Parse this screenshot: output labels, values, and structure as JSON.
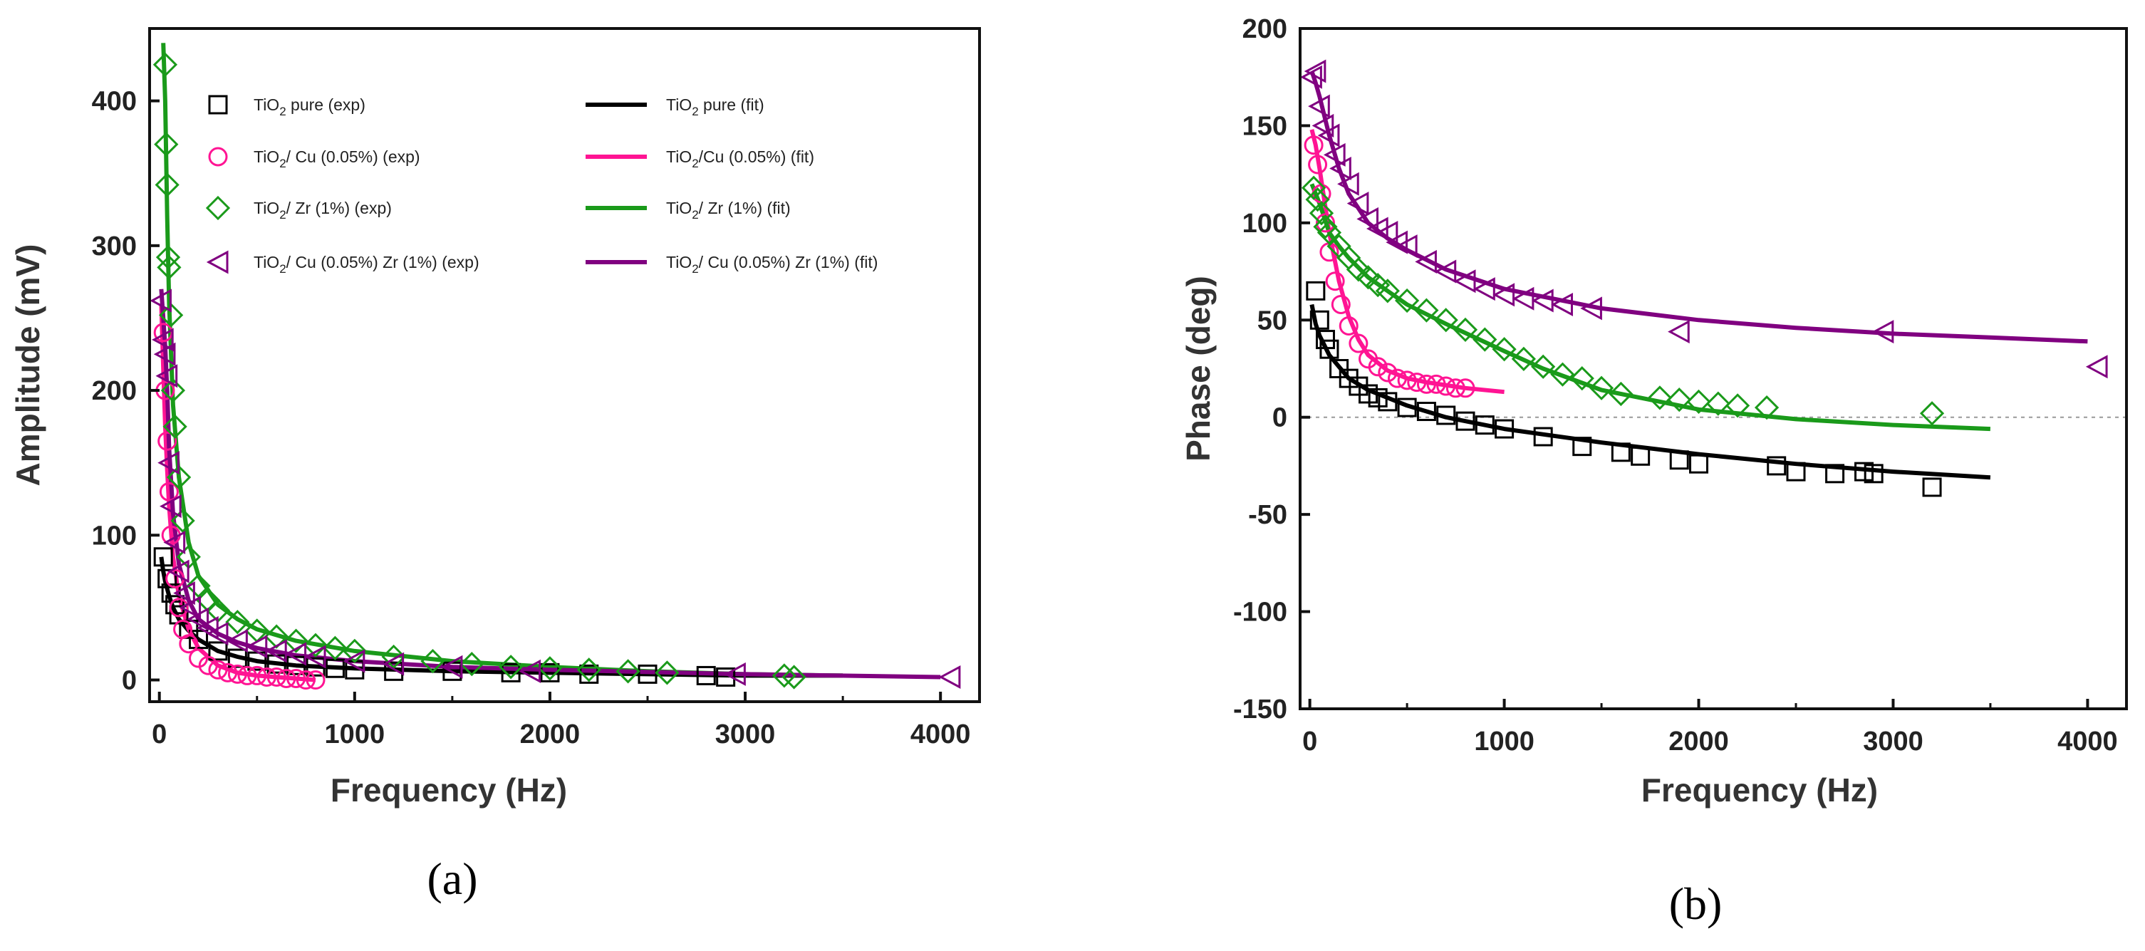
{
  "chart_data": [
    {
      "type": "scatter",
      "panel_label": "(a)",
      "xlabel": "Frequency (Hz)",
      "ylabel": "Amplitude (mV)",
      "xlim": [
        -50,
        4200
      ],
      "ylim": [
        -15,
        450
      ],
      "xticks": [
        "0",
        "1000",
        "2000",
        "3000",
        "4000"
      ],
      "yticks": [
        "0",
        "100",
        "200",
        "300",
        "400"
      ],
      "legend_position": "top-right",
      "series": [
        {
          "name": "pure-exp",
          "prefix": "TiO",
          "sub": "2",
          "suffix": " pure (exp)",
          "kind": "exp",
          "marker": "square",
          "color": "#000000",
          "x": [
            20,
            40,
            60,
            80,
            100,
            150,
            200,
            300,
            400,
            500,
            600,
            700,
            800,
            900,
            1000,
            1200,
            1500,
            1800,
            2000,
            2200,
            2500,
            2800,
            2900
          ],
          "y": [
            85,
            70,
            60,
            52,
            45,
            35,
            28,
            20,
            15,
            13,
            11,
            10,
            9,
            8,
            7,
            6,
            6,
            5,
            5,
            4,
            4,
            3,
            2
          ]
        },
        {
          "name": "cu-exp",
          "prefix": "TiO",
          "sub": "2",
          "suffix": "/ Cu (0.05%) (exp)",
          "kind": "exp",
          "marker": "circle",
          "color": "#ff1493",
          "x": [
            20,
            30,
            40,
            50,
            60,
            80,
            100,
            120,
            150,
            200,
            250,
            300,
            350,
            400,
            450,
            500,
            550,
            600,
            650,
            700,
            750,
            800
          ],
          "y": [
            240,
            200,
            165,
            130,
            100,
            70,
            50,
            35,
            25,
            15,
            10,
            7,
            5,
            4,
            3,
            3,
            2,
            2,
            1,
            1,
            0,
            0
          ]
        },
        {
          "name": "zr-exp",
          "prefix": "TiO",
          "sub": "2",
          "suffix": "/ Zr (1%) (exp)",
          "kind": "exp",
          "marker": "diamond",
          "color": "#1a9a1a",
          "x": [
            30,
            35,
            40,
            45,
            50,
            60,
            70,
            80,
            100,
            120,
            150,
            200,
            250,
            300,
            400,
            500,
            600,
            700,
            800,
            900,
            1000,
            1200,
            1400,
            1600,
            1800,
            2000,
            2200,
            2400,
            2600,
            3200,
            3250
          ],
          "y": [
            425,
            370,
            342,
            292,
            285,
            252,
            200,
            175,
            140,
            110,
            85,
            65,
            55,
            48,
            40,
            34,
            30,
            27,
            24,
            22,
            20,
            16,
            13,
            11,
            9,
            8,
            7,
            6,
            5,
            3,
            2
          ]
        },
        {
          "name": "cuzr-exp",
          "prefix": "TiO",
          "sub": "2",
          "suffix": "/ Cu (0.05%) Zr (1%) (exp)",
          "kind": "exp",
          "marker": "triangle",
          "color": "#800080",
          "x": [
            10,
            20,
            30,
            40,
            50,
            60,
            80,
            100,
            130,
            160,
            200,
            250,
            300,
            400,
            500,
            600,
            700,
            800,
            1000,
            1200,
            1500,
            1900,
            2950,
            4050
          ],
          "y": [
            262,
            235,
            225,
            210,
            150,
            120,
            95,
            75,
            60,
            50,
            42,
            36,
            32,
            27,
            23,
            20,
            18,
            16,
            13,
            11,
            9,
            6,
            4,
            2
          ]
        },
        {
          "name": "pure-fit",
          "prefix": "TiO",
          "sub": "2",
          "suffix": " pure (fit)",
          "kind": "fit",
          "color": "#000000",
          "x": [
            10,
            20,
            30,
            50,
            70,
            100,
            150,
            200,
            300,
            400,
            500,
            700,
            1000,
            1500,
            2000,
            2500,
            3000,
            3500
          ],
          "y": [
            85,
            75,
            68,
            58,
            50,
            42,
            34,
            28,
            20,
            16,
            13,
            10,
            8,
            6,
            5,
            4,
            3,
            3
          ]
        },
        {
          "name": "cu-fit",
          "prefix": "TiO",
          "sub": "2",
          "suffix": "/Cu (0.05%) (fit)",
          "kind": "fit",
          "color": "#ff1493",
          "x": [
            10,
            20,
            30,
            40,
            50,
            70,
            100,
            150,
            200,
            300,
            400,
            500,
            600,
            800
          ],
          "y": [
            260,
            215,
            175,
            145,
            120,
            85,
            58,
            35,
            22,
            10,
            5,
            3,
            2,
            0
          ]
        },
        {
          "name": "zr-fit",
          "prefix": "TiO",
          "sub": "2",
          "suffix": "/ Zr (1%) (fit)",
          "kind": "fit",
          "color": "#1a9a1a",
          "x": [
            20,
            30,
            40,
            50,
            70,
            100,
            150,
            200,
            300,
            400,
            500,
            700,
            1000,
            1500,
            2000,
            2500,
            3000,
            3500
          ],
          "y": [
            440,
            400,
            320,
            260,
            190,
            140,
            95,
            72,
            52,
            42,
            35,
            27,
            20,
            13,
            9,
            6,
            4,
            3
          ]
        },
        {
          "name": "cuzr-fit",
          "prefix": "TiO",
          "sub": "2",
          "suffix": "/ Cu (0.05%) Zr (1%) (fit)",
          "kind": "fit",
          "color": "#800080",
          "x": [
            10,
            20,
            30,
            40,
            50,
            70,
            100,
            150,
            200,
            300,
            400,
            500,
            700,
            1000,
            1500,
            2000,
            3000,
            4000
          ],
          "y": [
            270,
            250,
            230,
            200,
            160,
            115,
            80,
            55,
            42,
            32,
            26,
            22,
            17,
            13,
            9,
            7,
            4,
            2
          ]
        }
      ]
    },
    {
      "type": "scatter",
      "panel_label": "(b)",
      "xlabel": "Frequency (Hz)",
      "ylabel": "Phase (deg)",
      "xlim": [
        -50,
        4200
      ],
      "ylim": [
        -150,
        200
      ],
      "xticks": [
        "0",
        "1000",
        "2000",
        "3000",
        "4000"
      ],
      "yticks": [
        "-150",
        "-100",
        "-50",
        "0",
        "50",
        "100",
        "150",
        "200"
      ],
      "reference_line_y": 0,
      "series": [
        {
          "name": "pure-exp",
          "kind": "exp",
          "marker": "square",
          "color": "#000000",
          "x": [
            30,
            50,
            80,
            100,
            150,
            200,
            250,
            300,
            350,
            400,
            500,
            600,
            700,
            800,
            900,
            1000,
            1200,
            1400,
            1600,
            1700,
            1900,
            2000,
            2400,
            2500,
            2700,
            2850,
            2900,
            3200
          ],
          "y": [
            65,
            50,
            40,
            35,
            25,
            20,
            16,
            12,
            10,
            8,
            5,
            3,
            1,
            -2,
            -4,
            -6,
            -10,
            -15,
            -18,
            -20,
            -22,
            -24,
            -25,
            -28,
            -29,
            -28,
            -29,
            -36
          ]
        },
        {
          "name": "cu-exp",
          "kind": "exp",
          "marker": "circle",
          "color": "#ff1493",
          "x": [
            20,
            40,
            60,
            80,
            100,
            130,
            160,
            200,
            250,
            300,
            350,
            400,
            450,
            500,
            550,
            600,
            650,
            700,
            750,
            800
          ],
          "y": [
            140,
            130,
            115,
            100,
            85,
            70,
            58,
            47,
            38,
            30,
            26,
            23,
            20,
            19,
            18,
            17,
            17,
            16,
            15,
            15
          ]
        },
        {
          "name": "zr-exp",
          "kind": "exp",
          "marker": "diamond",
          "color": "#1a9a1a",
          "x": [
            20,
            40,
            60,
            80,
            100,
            150,
            200,
            250,
            300,
            350,
            400,
            500,
            600,
            700,
            800,
            900,
            1000,
            1100,
            1200,
            1300,
            1400,
            1500,
            1600,
            1800,
            1900,
            2000,
            2100,
            2200,
            2350,
            3200
          ],
          "y": [
            118,
            112,
            105,
            98,
            95,
            88,
            82,
            76,
            72,
            68,
            65,
            60,
            55,
            50,
            45,
            40,
            35,
            30,
            26,
            22,
            20,
            15,
            12,
            10,
            9,
            8,
            7,
            6,
            5,
            2
          ]
        },
        {
          "name": "cuzr-exp",
          "kind": "exp",
          "marker": "triangle",
          "color": "#800080",
          "x": [
            10,
            30,
            50,
            70,
            100,
            130,
            160,
            200,
            250,
            300,
            350,
            400,
            450,
            500,
            600,
            700,
            800,
            900,
            1000,
            1100,
            1200,
            1300,
            1450,
            1900,
            2950,
            4050
          ],
          "y": [
            175,
            178,
            160,
            150,
            145,
            135,
            128,
            120,
            110,
            102,
            97,
            95,
            90,
            88,
            80,
            75,
            70,
            66,
            63,
            61,
            60,
            58,
            56,
            44,
            44,
            26
          ]
        },
        {
          "name": "pure-fit",
          "kind": "fit",
          "color": "#000000",
          "x": [
            10,
            30,
            50,
            100,
            150,
            200,
            300,
            400,
            500,
            700,
            1000,
            1500,
            2000,
            2500,
            3000,
            3500
          ],
          "y": [
            58,
            48,
            42,
            32,
            26,
            20,
            14,
            10,
            6,
            0,
            -6,
            -13,
            -19,
            -24,
            -28,
            -31
          ]
        },
        {
          "name": "cu-fit",
          "kind": "fit",
          "color": "#ff1493",
          "x": [
            10,
            30,
            50,
            80,
            100,
            150,
            200,
            250,
            300,
            400,
            500,
            600,
            800,
            1000
          ],
          "y": [
            148,
            140,
            128,
            108,
            95,
            70,
            52,
            40,
            32,
            24,
            20,
            18,
            15,
            13
          ]
        },
        {
          "name": "zr-fit",
          "kind": "fit",
          "color": "#1a9a1a",
          "x": [
            10,
            30,
            50,
            100,
            150,
            200,
            300,
            400,
            500,
            700,
            1000,
            1200,
            1500,
            2000,
            2500,
            3000,
            3500
          ],
          "y": [
            120,
            115,
            110,
            95,
            88,
            82,
            72,
            65,
            58,
            48,
            34,
            25,
            14,
            4,
            -1,
            -4,
            -6
          ]
        },
        {
          "name": "cuzr-fit",
          "kind": "fit",
          "color": "#800080",
          "x": [
            10,
            30,
            50,
            100,
            150,
            200,
            300,
            400,
            500,
            700,
            1000,
            1500,
            2000,
            2500,
            3000,
            3500,
            4000
          ],
          "y": [
            178,
            172,
            165,
            145,
            128,
            115,
            100,
            92,
            86,
            76,
            66,
            56,
            50,
            46,
            43,
            41,
            39
          ]
        }
      ]
    }
  ]
}
